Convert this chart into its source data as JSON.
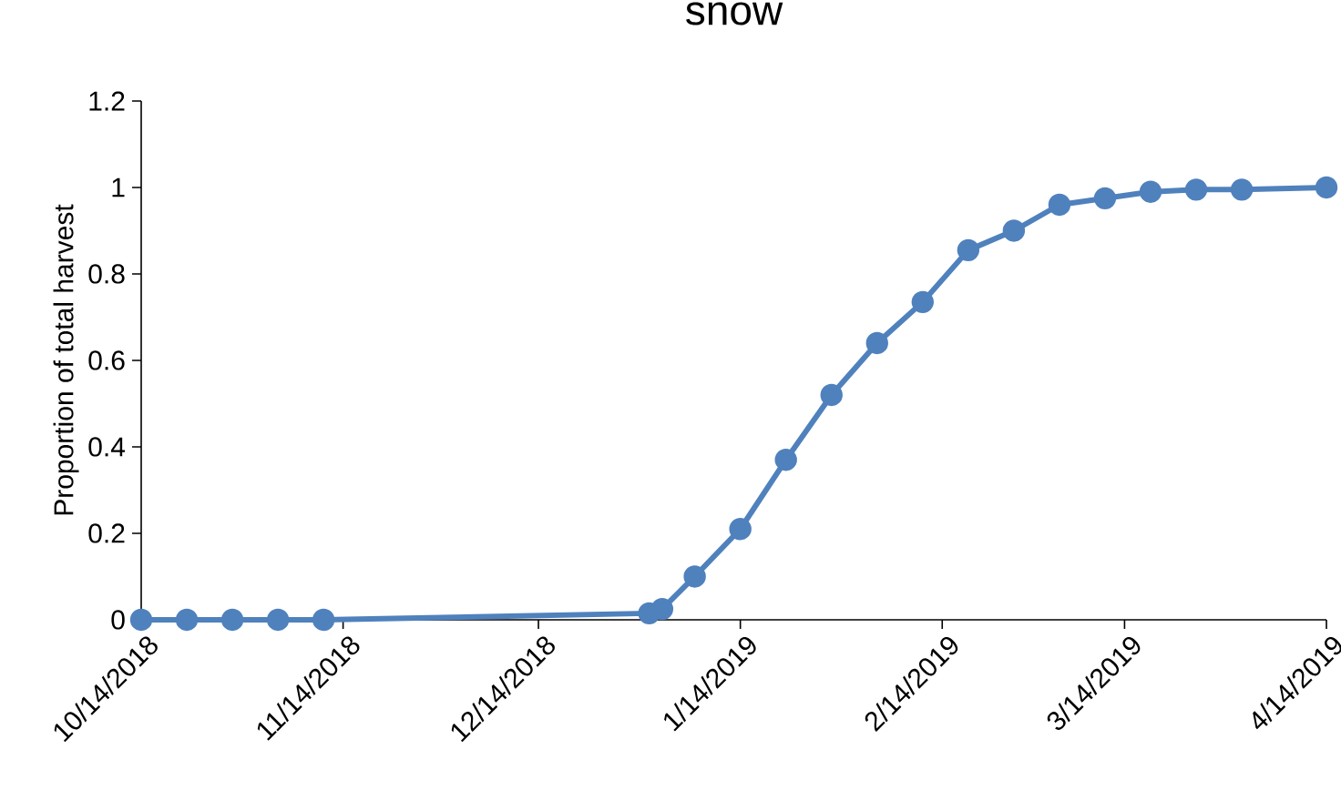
{
  "chart_data": {
    "type": "line",
    "title": "snow",
    "ylabel": "Proportion of total harvest",
    "x": [
      "2018-10-14",
      "2018-10-21",
      "2018-10-28",
      "2018-11-04",
      "2018-11-11",
      "2018-12-31",
      "2019-01-02",
      "2019-01-07",
      "2019-01-14",
      "2019-01-21",
      "2019-01-28",
      "2019-02-04",
      "2019-02-11",
      "2019-02-18",
      "2019-02-25",
      "2019-03-04",
      "2019-03-11",
      "2019-03-18",
      "2019-03-25",
      "2019-04-01",
      "2019-04-14"
    ],
    "series": [
      {
        "color": "#4f81bd",
        "values": [
          0,
          0,
          0,
          0,
          0,
          0.015,
          0.025,
          0.1,
          0.21,
          0.37,
          0.52,
          0.64,
          0.735,
          0.855,
          0.9,
          0.96,
          0.975,
          0.99,
          0.995,
          0.995,
          1.0
        ]
      }
    ],
    "xlim": [
      "2018-10-14",
      "2019-04-14"
    ],
    "xticks": [
      {
        "value": "2018-10-14",
        "label": "10/14/2018"
      },
      {
        "value": "2018-11-14",
        "label": "11/14/2018"
      },
      {
        "value": "2018-12-14",
        "label": "12/14/2018"
      },
      {
        "value": "2019-01-14",
        "label": "1/14/2019"
      },
      {
        "value": "2019-02-14",
        "label": "2/14/2019"
      },
      {
        "value": "2019-03-14",
        "label": "3/14/2019"
      },
      {
        "value": "2019-04-14",
        "label": "4/14/2019"
      }
    ],
    "ylim": [
      0,
      1.2
    ],
    "yticks": [
      0,
      0.2,
      0.4,
      0.6,
      0.8,
      1,
      1.2
    ],
    "marker": "circle",
    "line_style": "solid"
  }
}
